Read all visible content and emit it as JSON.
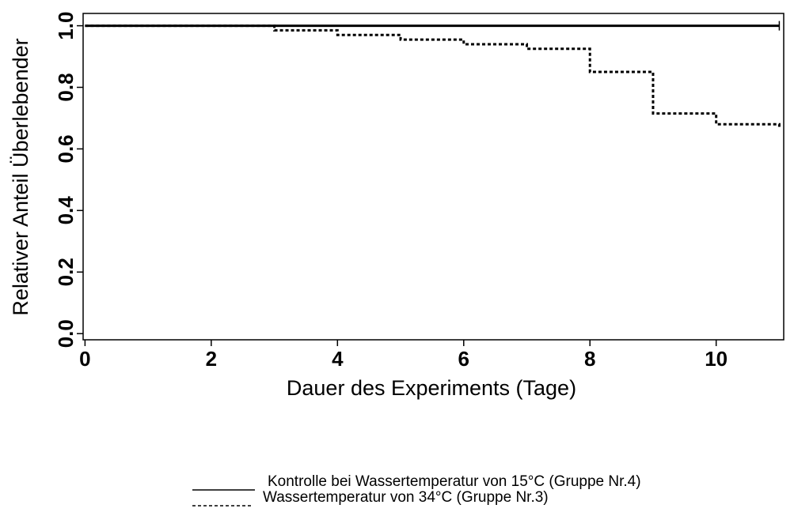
{
  "chart_data": {
    "type": "line",
    "xlabel": "Dauer des Experiments (Tage)",
    "ylabel": "Relativer Anteil Überlebender",
    "xlim": [
      -0.03,
      11.07
    ],
    "ylim": [
      -0.02,
      1.04
    ],
    "xticks": [
      0,
      2,
      4,
      6,
      8,
      10
    ],
    "yticks": [
      {
        "value": 0,
        "label": "0.0"
      },
      0.2,
      0.4,
      0.6,
      0.8,
      {
        "value": 1,
        "label": "1.0"
      }
    ],
    "series": [
      {
        "name": "Kontrolle bei Wassertemperatur von 15°C (Gruppe Nr.4)",
        "color": "#000000",
        "style": "solid",
        "x": [
          0,
          11
        ],
        "values": [
          1,
          1
        ]
      },
      {
        "name": "Wassertemperatur von 34°C (Gruppe Nr.3)",
        "color": "#000000",
        "style": "dashed",
        "x": [
          0,
          3,
          3,
          4,
          4,
          5,
          5,
          6,
          6,
          7,
          7,
          8,
          8,
          9,
          9,
          10,
          10,
          11,
          11
        ],
        "values": [
          1,
          1,
          0.985,
          0.985,
          0.97,
          0.97,
          0.955,
          0.955,
          0.94,
          0.94,
          0.925,
          0.925,
          0.85,
          0.85,
          0.715,
          0.715,
          0.68,
          0.68,
          0.67
        ]
      }
    ]
  }
}
